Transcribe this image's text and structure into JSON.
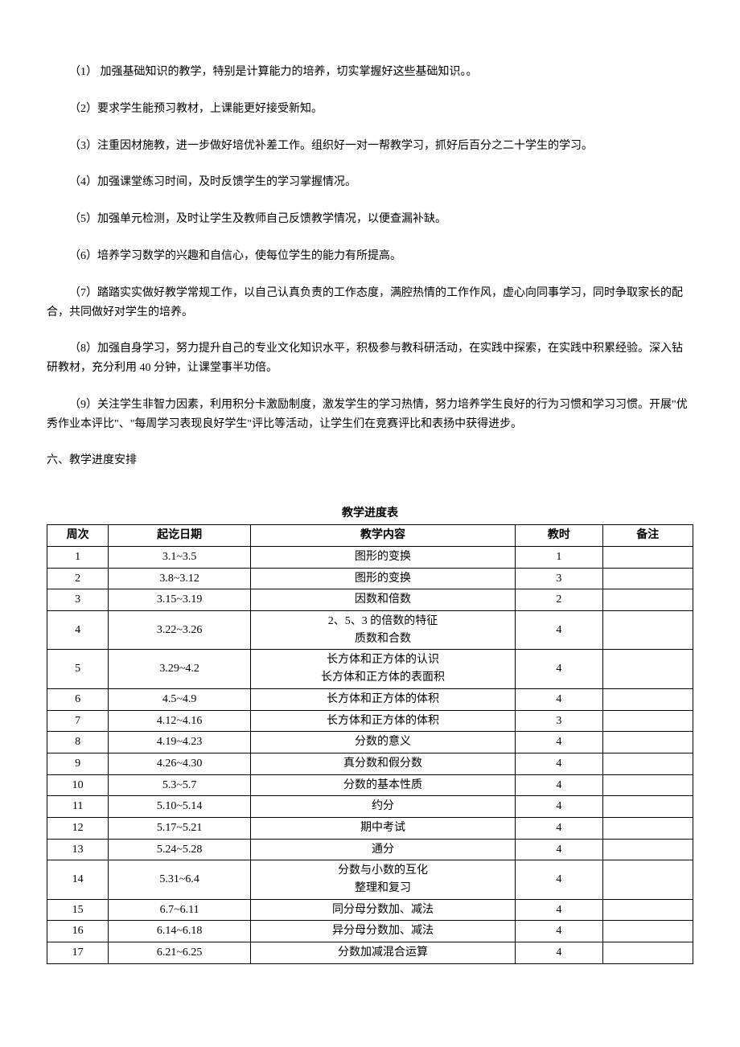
{
  "paragraphs": {
    "p1": "（1） 加强基础知识的教学，特别是计算能力的培养，切实掌握好这些基础知识。。",
    "p2": "（2）要求学生能预习教材，上课能更好接受新知。",
    "p3": "（3）注重因材施教，进一步做好培优补差工作。组织好一对一帮教学习，抓好后百分之二十学生的学习。",
    "p4": "（4）加强课堂练习时间，及时反馈学生的学习掌握情况。",
    "p5": "（5）加强单元检测，及时让学生及教师自己反馈教学情况，以便查漏补缺。",
    "p6": "（6）培养学习数学的兴趣和自信心，使每位学生的能力有所提高。",
    "p7": "（7）踏踏实实做好教学常规工作，以自己认真负责的工作态度，满腔热情的工作作风，虚心向同事学习，同时争取家长的配合，共同做好对学生的培养。",
    "p8": "（8）加强自身学习，努力提升自己的专业文化知识水平，积极参与教科研活动，在实践中探索，在实践中积累经验。深入钻研教材，充分利用 40 分钟，让课堂事半功倍。",
    "p9": "（9）关注学生非智力因素，利用积分卡激励制度，激发学生的学习热情，努力培养学生良好的行为习惯和学习习惯。开展\"优秀作业本评比\"、\"每周学习表现良好学生\"评比等活动，让学生们在竞赛评比和表扬中获得进步。"
  },
  "section_heading": "六、教学进度安排",
  "table": {
    "title": "教学进度表",
    "headers": {
      "week": "周次",
      "date": "起讫日期",
      "content": "教学内容",
      "hours": "教时",
      "note": "备注"
    },
    "rows": [
      {
        "week": "1",
        "date": "3.1~3.5",
        "content": "图形的变换",
        "hours": "1",
        "note": ""
      },
      {
        "week": "2",
        "date": "3.8~3.12",
        "content": "图形的变换",
        "hours": "3",
        "note": ""
      },
      {
        "week": "3",
        "date": "3.15~3.19",
        "content": "因数和倍数",
        "hours": "2",
        "note": ""
      },
      {
        "week": "4",
        "date": "3.22~3.26",
        "content": "2、5、3 的倍数的特征\n质数和合数",
        "hours": "4",
        "note": ""
      },
      {
        "week": "5",
        "date": "3.29~4.2",
        "content": "长方体和正方体的认识\n长方体和正方体的表面积",
        "hours": "4",
        "note": ""
      },
      {
        "week": "6",
        "date": "4.5~4.9",
        "content": "长方体和正方体的体积",
        "hours": "4",
        "note": ""
      },
      {
        "week": "7",
        "date": "4.12~4.16",
        "content": "长方体和正方体的体积",
        "hours": "3",
        "note": ""
      },
      {
        "week": "8",
        "date": "4.19~4.23",
        "content": "分数的意义",
        "hours": "4",
        "note": ""
      },
      {
        "week": "9",
        "date": "4.26~4.30",
        "content": "真分数和假分数",
        "hours": "4",
        "note": ""
      },
      {
        "week": "10",
        "date": "5.3~5.7",
        "content": "分数的基本性质",
        "hours": "4",
        "note": ""
      },
      {
        "week": "11",
        "date": "5.10~5.14",
        "content": "约分",
        "hours": "4",
        "note": ""
      },
      {
        "week": "12",
        "date": "5.17~5.21",
        "content": "期中考试",
        "hours": "4",
        "note": ""
      },
      {
        "week": "13",
        "date": "5.24~5.28",
        "content": "通分",
        "hours": "4",
        "note": ""
      },
      {
        "week": "14",
        "date": "5.31~6.4",
        "content": "分数与小数的互化\n整理和复习",
        "hours": "4",
        "note": ""
      },
      {
        "week": "15",
        "date": "6.7~6.11",
        "content": "同分母分数加、减法",
        "hours": "4",
        "note": ""
      },
      {
        "week": "16",
        "date": "6.14~6.18",
        "content": "异分母分数加、减法",
        "hours": "4",
        "note": ""
      },
      {
        "week": "17",
        "date": "6.21~6.25",
        "content": "分数加减混合运算",
        "hours": "4",
        "note": ""
      }
    ]
  }
}
